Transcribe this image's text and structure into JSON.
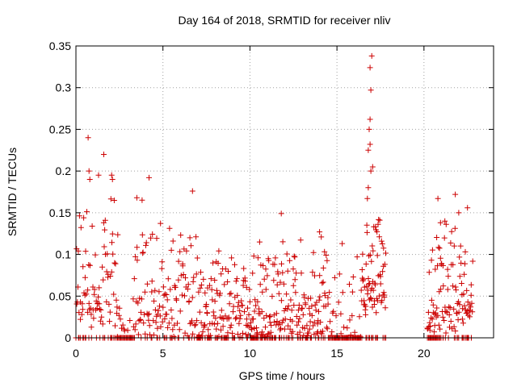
{
  "chart_data": {
    "type": "scatter",
    "title": "Day 164 of 2018, SRMTID for receiver nliv",
    "xlabel": "GPS time / hours",
    "ylabel": "SRMTID / TECUs",
    "xlim": [
      0,
      24
    ],
    "ylim": [
      0,
      0.35
    ],
    "x_ticks": [
      0,
      5,
      10,
      15,
      20
    ],
    "x_tick_labels": [
      "0",
      "5",
      "10",
      "15",
      "20"
    ],
    "y_ticks": [
      0,
      0.05,
      0.1,
      0.15,
      0.2,
      0.25,
      0.3,
      0.35
    ],
    "y_tick_labels": [
      "0",
      "0.05",
      "0.1",
      "0.15",
      "0.2",
      "0.25",
      "0.3",
      "0.35"
    ],
    "grid": true,
    "marker": "plus",
    "color": "#cc0000",
    "series": [
      {
        "name": "SRMTID",
        "segments": [
          {
            "start": 0.0,
            "end": 2.4,
            "step": 0.03,
            "base": 0.065,
            "amp": 0.1,
            "seed": 11
          },
          {
            "start": 2.4,
            "end": 3.3,
            "step": 0.06,
            "base": 0.01,
            "amp": 0.05,
            "seed": 23
          },
          {
            "start": 3.3,
            "end": 7.0,
            "step": 0.03,
            "base": 0.045,
            "amp": 0.09,
            "seed": 37
          },
          {
            "start": 7.0,
            "end": 14.5,
            "step": 0.025,
            "base": 0.035,
            "amp": 0.08,
            "seed": 53
          },
          {
            "start": 14.5,
            "end": 16.4,
            "step": 0.05,
            "base": 0.02,
            "amp": 0.08,
            "seed": 71
          },
          {
            "start": 16.4,
            "end": 17.8,
            "step": 0.02,
            "base": 0.07,
            "amp": 0.09,
            "seed": 89
          },
          {
            "start": 20.2,
            "end": 22.8,
            "step": 0.025,
            "base": 0.05,
            "amp": 0.08,
            "seed": 97
          }
        ],
        "points": [
          [
            0.7,
            0.24
          ],
          [
            0.75,
            0.2
          ],
          [
            0.8,
            0.19
          ],
          [
            1.3,
            0.195
          ],
          [
            1.6,
            0.22
          ],
          [
            2.05,
            0.195
          ],
          [
            2.1,
            0.19
          ],
          [
            3.5,
            0.168
          ],
          [
            3.8,
            0.165
          ],
          [
            4.2,
            0.192
          ],
          [
            6.7,
            0.176
          ],
          [
            11.8,
            0.149
          ],
          [
            14.0,
            0.127
          ],
          [
            15.3,
            0.113
          ],
          [
            17.0,
            0.338
          ],
          [
            16.9,
            0.324
          ],
          [
            16.95,
            0.297
          ],
          [
            16.9,
            0.262
          ],
          [
            16.85,
            0.25
          ],
          [
            16.8,
            0.225
          ],
          [
            16.9,
            0.232
          ],
          [
            16.95,
            0.2
          ],
          [
            17.05,
            0.205
          ],
          [
            16.8,
            0.18
          ],
          [
            16.75,
            0.167
          ],
          [
            20.8,
            0.167
          ],
          [
            21.8,
            0.172
          ],
          [
            22.5,
            0.156
          ],
          [
            21.2,
            0.14
          ],
          [
            20.95,
            0.138
          ],
          [
            22.0,
            0.15
          ]
        ],
        "zero_gaps": [
          [
            2.4,
            3.3
          ],
          [
            14.5,
            16.4
          ],
          [
            20.2,
            21.0
          ]
        ]
      }
    ]
  }
}
